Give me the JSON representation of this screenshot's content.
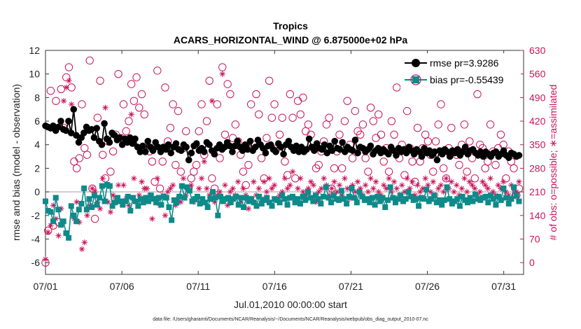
{
  "chart_data": {
    "type": "line",
    "title": "Tropics",
    "subtitle": "ACARS_HORIZONTAL_WIND @ 6.875000e+02 hPa",
    "xlabel": "Jul.01,2010 00:00:00 start",
    "ylabel_left": "rmse and bias (model - observation)",
    "ylabel_right": "# of obs: o=possible; ∗=assimilated",
    "footnote": "data file: /Users/gharamti/Documents/NCAR/Reanalysis/~/Documents/NCAR/Reanalysis/webpub/obs_diag_output_2010-07.nc",
    "x_range_days": [
      0,
      31.3
    ],
    "x_ticks": [
      {
        "day": 0,
        "label": "07/01"
      },
      {
        "day": 5,
        "label": "07/06"
      },
      {
        "day": 10,
        "label": "07/11"
      },
      {
        "day": 15,
        "label": "07/16"
      },
      {
        "day": 20,
        "label": "07/21"
      },
      {
        "day": 25,
        "label": "07/26"
      },
      {
        "day": 30,
        "label": "07/31"
      }
    ],
    "y_left_range": [
      -7,
      12
    ],
    "y_left_ticks": [
      -6,
      -4,
      -2,
      0,
      2,
      4,
      6,
      8,
      10,
      12
    ],
    "y_right_range": [
      -35,
      630
    ],
    "y_right_ticks": [
      0,
      70,
      140,
      210,
      280,
      350,
      420,
      490,
      560,
      630
    ],
    "zero_line": 0,
    "colors": {
      "rmse": "#000000",
      "bias": "#0e8a8a",
      "obs": "#c8145a",
      "zero": "#bfbfbf",
      "axis": "#333333"
    },
    "legend": {
      "location": "top-right",
      "rmse_label": "rmse pr=3.9286",
      "bias_label": "bias pr=-0.55439"
    },
    "series": [
      {
        "name": "rmse",
        "marker": "filled-circle",
        "values": [
          5.6,
          5.5,
          5.4,
          5.6,
          5.2,
          5.5,
          6.0,
          5.3,
          5.2,
          6.0,
          5.0,
          7.0,
          4.8,
          4.2,
          4.6,
          5.0,
          5.5,
          5.2,
          5.3,
          4.6,
          5.4,
          4.3,
          4.0,
          5.8,
          4.5,
          4.2,
          5.0,
          4.8,
          4.4,
          4.6,
          4.0,
          4.5,
          4.2,
          4.6,
          4.1,
          4.5,
          3.8,
          3.4,
          3.9,
          3.4,
          4.3,
          3.8,
          3.5,
          4.2,
          3.8,
          3.4,
          3.8,
          3.6,
          4.0,
          3.3,
          3.8,
          4.1,
          3.6,
          3.5,
          4.0,
          3.8,
          2.7,
          3.3,
          3.9,
          4.1,
          3.5,
          3.7,
          3.4,
          4.2,
          4.0,
          3.5,
          3.2,
          3.7,
          4.0,
          3.6,
          3.8,
          4.2,
          3.9,
          3.4,
          3.9,
          4.3,
          3.8,
          3.5,
          4.0,
          3.6,
          4.3,
          3.5,
          3.8,
          4.4,
          4.0,
          3.7,
          3.3,
          3.9,
          4.0,
          3.6,
          3.4,
          4.1,
          3.8,
          3.2,
          4.0,
          4.3,
          3.8,
          3.5,
          3.9,
          3.4,
          3.8,
          3.4,
          3.6,
          4.5,
          3.8,
          3.5,
          4.1,
          3.7,
          3.6,
          4.0,
          3.3,
          3.9,
          3.5,
          4.3,
          3.7,
          3.6,
          4.2,
          3.4,
          3.8,
          3.6,
          3.5,
          4.4,
          3.3,
          3.8,
          3.7,
          3.4,
          3.6,
          3.9,
          3.2,
          3.5,
          3.7,
          3.3,
          3.6,
          3.4,
          3.2,
          3.8,
          3.5,
          3.1,
          3.7,
          3.4,
          3.6,
          3.3,
          3.8,
          3.5,
          3.2,
          3.6,
          3.4,
          3.0,
          3.7,
          3.3,
          3.5,
          3.1,
          3.4,
          2.7,
          3.5,
          3.2,
          3.6,
          3.4,
          3.0,
          3.5,
          3.3,
          3.6,
          3.1,
          3.4,
          3.8,
          3.2,
          3.5,
          3.6,
          3.3,
          3.1,
          3.4,
          3.0,
          3.4,
          3.2,
          3.0,
          3.3,
          3.4,
          3.0,
          3.2,
          3.5,
          3.1,
          2.9,
          3.3,
          3.2,
          3.0,
          3.1
        ]
      },
      {
        "name": "bias",
        "marker": "filled-square",
        "values": [
          -0.8,
          -1.6,
          -1.7,
          -2.5,
          -0.5,
          -1.5,
          -2.8,
          -2.5,
          -3.5,
          -3.9,
          -1.2,
          -2.0,
          -2.5,
          -1.5,
          -1.0,
          0.3,
          -1.5,
          -0.6,
          -1.3,
          -0.3,
          -1.1,
          -0.5,
          0.5,
          -0.8,
          0.6,
          0.5,
          -1.2,
          -0.9,
          -0.5,
          -0.8,
          -1.1,
          -0.8,
          -0.4,
          -1.6,
          -0.5,
          -0.8,
          -1.2,
          -0.6,
          -0.9,
          -0.5,
          -0.8,
          -0.3,
          -0.6,
          -0.9,
          -0.5,
          -1.1,
          -0.4,
          -0.5,
          -1.3,
          -2.4,
          -0.7,
          -0.9,
          -0.4,
          0.5,
          -0.5,
          0.4,
          0.1,
          -0.8,
          -0.6,
          -0.4,
          -1.0,
          -0.6,
          -0.9,
          -1.3,
          -0.6,
          0.0,
          -0.5,
          -2.0,
          -0.4,
          -0.8,
          -0.6,
          -0.5,
          -0.9,
          -0.6,
          -0.4,
          -1.1,
          -0.5,
          -1.3,
          -0.5,
          -0.8,
          -0.6,
          -0.9,
          -1.2,
          -0.4,
          -1.0,
          -0.7,
          -0.5,
          -0.9,
          -1.2,
          -0.6,
          -0.7,
          -0.9,
          -0.3,
          -0.6,
          -1.1,
          -0.5,
          -0.4,
          -0.9,
          -0.6,
          -1.0,
          -0.4,
          -0.7,
          0.0,
          -0.5,
          -0.8,
          -0.3,
          -0.6,
          -1.0,
          -0.4,
          0.4,
          -0.5,
          -0.9,
          -0.3,
          -0.6,
          -0.7,
          0.1,
          -0.6,
          -1.0,
          -0.4,
          0.3,
          -0.5,
          -0.9,
          0.0,
          -0.4,
          -0.7,
          -0.6,
          -0.9,
          -0.5,
          -1.1,
          -0.4,
          -0.8,
          -0.5,
          -1.3,
          -0.7,
          0.4,
          -0.5,
          -0.9,
          -0.6,
          -0.3,
          -0.8,
          -0.6,
          0.0,
          -0.4,
          -0.7,
          -0.6,
          -1.2,
          -0.5,
          -0.6,
          0.2,
          -0.8,
          -0.6,
          -0.3,
          -0.9,
          -0.7,
          -1.1,
          -0.7,
          0.4,
          -0.6,
          -1.0,
          -0.8,
          -0.6,
          -1.2,
          -0.4,
          -0.7,
          -0.9,
          -0.5,
          -0.8,
          -0.2,
          -0.6,
          -0.7,
          -0.5,
          -0.4,
          -0.9,
          -0.3,
          -0.6,
          -1.1,
          -0.4,
          -0.7,
          0.3,
          -0.5,
          -1.0,
          -0.6,
          0.4,
          -0.3,
          -0.8
        ]
      },
      {
        "name": "obs_possible",
        "marker": "open-circle",
        "values": [
          0,
          95,
          510,
          110,
          480,
          120,
          515,
          400,
          550,
          580,
          520,
          300,
          280,
          310,
          470,
          340,
          320,
          600,
          220,
          130,
          430,
          540,
          320,
          250,
          360,
          270,
          330,
          380,
          560,
          370,
          470,
          390,
          420,
          530,
          480,
          550,
          460,
          500,
          440,
          340,
          330,
          300,
          240,
          570,
          220,
          300,
          520,
          360,
          400,
          470,
          290,
          450,
          270,
          340,
          390,
          220,
          250,
          270,
          290,
          390,
          470,
          320,
          420,
          540,
          250,
          220,
          470,
          310,
          580,
          380,
          530,
          500,
          370,
          410,
          360,
          320,
          270,
          230,
          290,
          470,
          350,
          500,
          440,
          310,
          250,
          370,
          540,
          430,
          470,
          340,
          380,
          430,
          300,
          260,
          500,
          430,
          250,
          480,
          440,
          490,
          390,
          410,
          380,
          340,
          280,
          290,
          330,
          360,
          410,
          430,
          220,
          280,
          330,
          380,
          280,
          420,
          480,
          350,
          310,
          450,
          390,
          380,
          410,
          310,
          270,
          460,
          420,
          370,
          440,
          380,
          300,
          340,
          270,
          420,
          380,
          520,
          310,
          350,
          260,
          450,
          340,
          300,
          240,
          400,
          300,
          340,
          380,
          360,
          320,
          270,
          360,
          410,
          470,
          280,
          250,
          340,
          400,
          570,
          320,
          290,
          350,
          410,
          270,
          360,
          310,
          250,
          500,
          350,
          340,
          280,
          300,
          410,
          330,
          290,
          340,
          380,
          350,
          250,
          330,
          300,
          280,
          200,
          220
        ]
      },
      {
        "name": "obs_assimilated",
        "marker": "star",
        "values": [
          10,
          90,
          110,
          170,
          130,
          80,
          160,
          480,
          520,
          540,
          470,
          130,
          180,
          120,
          40,
          60,
          140,
          170,
          220,
          210,
          180,
          160,
          250,
          460,
          180,
          150,
          200,
          190,
          230,
          180,
          230,
          190,
          170,
          440,
          250,
          180,
          200,
          240,
          220,
          220,
          200,
          130,
          190,
          250,
          170,
          200,
          140,
          210,
          220,
          230,
          170,
          190,
          180,
          250,
          200,
          220,
          230,
          180,
          190,
          220,
          250,
          300,
          220,
          200,
          480,
          180,
          200,
          210,
          560,
          230,
          170,
          210,
          220,
          200,
          240,
          180,
          220,
          200,
          160,
          190,
          240,
          200,
          220,
          190,
          240,
          210,
          250,
          220,
          230,
          190,
          200,
          210,
          250,
          220,
          230,
          270,
          190,
          220,
          250,
          210,
          200,
          220,
          240,
          230,
          180,
          210,
          220,
          250,
          230,
          200,
          220,
          240,
          210,
          230,
          200,
          250,
          220,
          190,
          230,
          210,
          240,
          220,
          200,
          230,
          210,
          250,
          220,
          240,
          210,
          200,
          230,
          220,
          250,
          210,
          240,
          220,
          200,
          230,
          210,
          250,
          220,
          240,
          200,
          230,
          210,
          220,
          250,
          230,
          210,
          240,
          200,
          220,
          230,
          210,
          250,
          220,
          240,
          210,
          230,
          200,
          220,
          250,
          210,
          240,
          230,
          220,
          200,
          210,
          240,
          230,
          220,
          250,
          210,
          200,
          230,
          220,
          240,
          210,
          200,
          230,
          220,
          210,
          240
        ]
      }
    ]
  }
}
